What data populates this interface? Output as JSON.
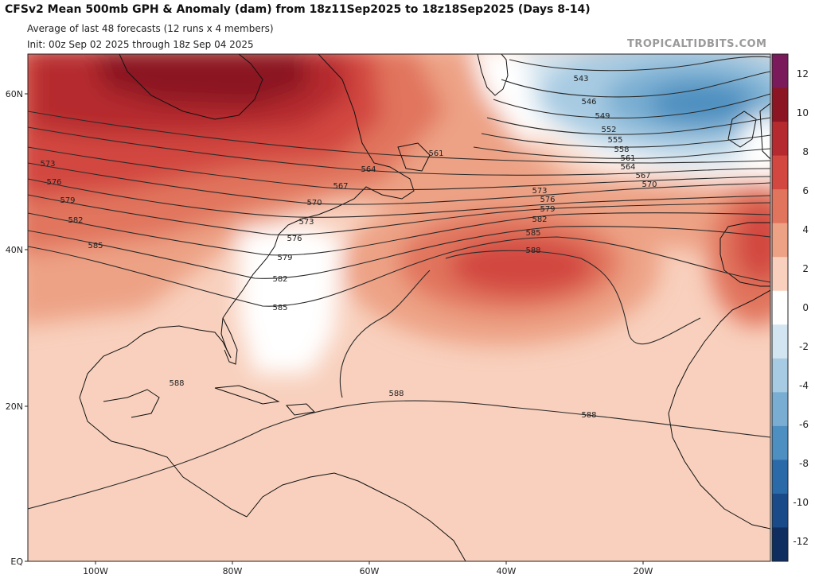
{
  "header": {
    "title": "CFSv2 Mean 500mb GPH & Anomaly (dam) from 18z11Sep2025 to 18z18Sep2025 (Days 8-14)",
    "subtitle_1": "Average of last 48 forecasts (12 runs x 4 members)",
    "subtitle_2": "Init: 00z Sep 02 2025 through 18z Sep 04 2025",
    "brand": "TROPICALTIDBITS.COM"
  },
  "map": {
    "lat_labels": [
      "60N",
      "40N",
      "20N",
      "EQ"
    ],
    "lon_labels": [
      "100W",
      "80W",
      "60W",
      "40W",
      "20W"
    ],
    "contour_labels": [
      "543",
      "546",
      "549",
      "552",
      "555",
      "558",
      "561",
      "564",
      "567",
      "570",
      "573",
      "576",
      "579",
      "582",
      "585",
      "588"
    ]
  },
  "colorbar": {
    "labels": [
      "12",
      "10",
      "8",
      "6",
      "4",
      "2",
      "0",
      "-2",
      "-4",
      "-6",
      "-8",
      "-10",
      "-12"
    ],
    "colors": [
      "#7b1a5a",
      "#8b1523",
      "#b52a2e",
      "#d2473f",
      "#e1745d",
      "#eda285",
      "#f8d0bd",
      "#ffffff",
      "#d3e5f0",
      "#a7cbe2",
      "#79aed2",
      "#4d8fc0",
      "#2b6aa8",
      "#1b4a88",
      "#0f2d5f"
    ]
  },
  "chart_data": {
    "type": "heatmap",
    "title": "CFSv2 Mean 500mb GPH & Anomaly (dam) from 18z11Sep2025 to 18z18Sep2025 (Days 8-14)",
    "units": "dam",
    "anomaly_colorbar_range": [
      -12,
      12
    ],
    "anomaly_colorbar_ticks": [
      12,
      10,
      8,
      6,
      4,
      2,
      0,
      -2,
      -4,
      -6,
      -8,
      -10,
      -12
    ],
    "height_contour_levels": [
      543,
      546,
      549,
      552,
      555,
      558,
      561,
      564,
      567,
      570,
      573,
      576,
      579,
      582,
      585,
      588
    ],
    "lat_ticks": [
      "60N",
      "40N",
      "20N",
      "EQ"
    ],
    "lon_ticks": [
      "100W",
      "80W",
      "60W",
      "40W",
      "20W"
    ]
  }
}
